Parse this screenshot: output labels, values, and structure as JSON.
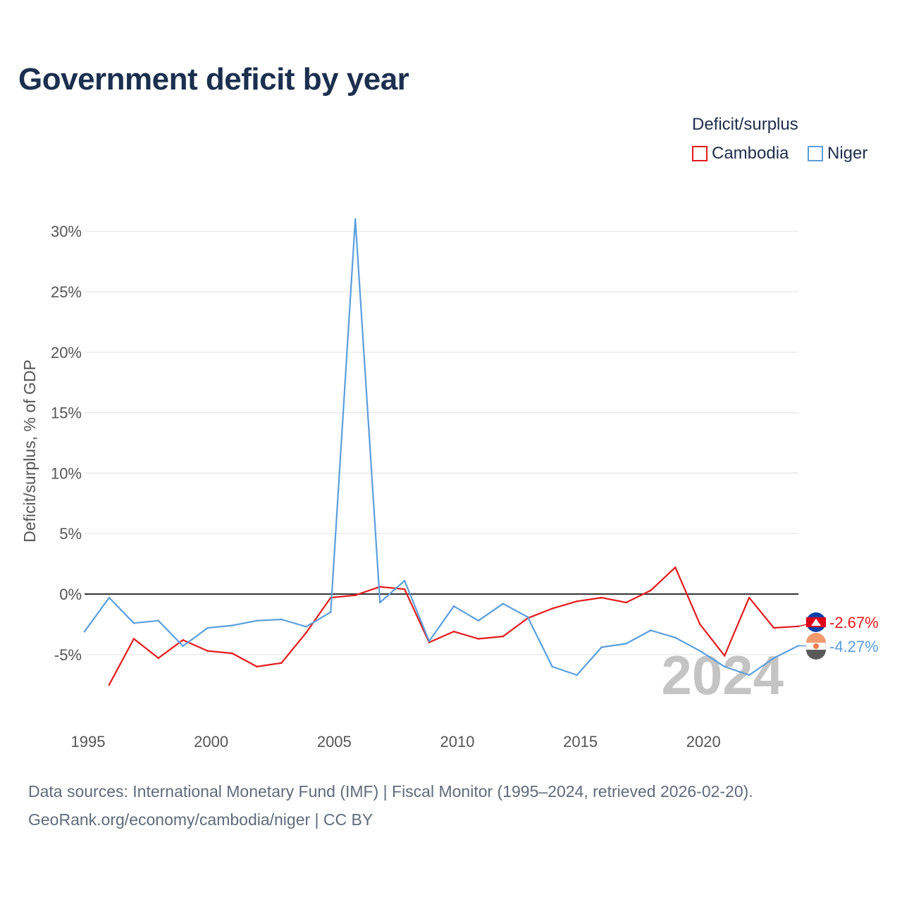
{
  "title": "Government deficit by year",
  "legend": {
    "title": "Deficit/surplus",
    "items": [
      "Cambodia",
      "Niger"
    ]
  },
  "colors": {
    "cambodia": "#e41a1c",
    "niger": "#5a9fdd",
    "grid": "#e6e6e6",
    "zero_line": "#333333",
    "year_watermark": "#c4c4c4",
    "axis_text": "#555555"
  },
  "source": {
    "line1": "Data sources: International Monetary Fund (IMF) | Fiscal Monitor (1995–2024, retrieved 2026-02-20).",
    "line2": "GeoRank.org/economy/cambodia/niger | CC BY"
  },
  "chart_data": {
    "type": "line",
    "title": "Government deficit by year",
    "xlabel": "",
    "ylabel": "Deficit/surplus, % of GDP",
    "xlim": [
      1995,
      2024
    ],
    "ylim": [
      -8.5,
      32
    ],
    "x_ticks": [
      1995,
      2000,
      2005,
      2010,
      2015,
      2020
    ],
    "y_ticks": [
      -5,
      0,
      5,
      10,
      15,
      20,
      25,
      30
    ],
    "y_tick_labels": [
      "-5%",
      "0%",
      "5%",
      "10%",
      "15%",
      "20%",
      "25%",
      "30%"
    ],
    "grid": true,
    "legend_position": "top-right",
    "watermark_year": "2024",
    "series": [
      {
        "name": "Cambodia",
        "x": [
          1996,
          1997,
          1998,
          1999,
          2000,
          2001,
          2002,
          2003,
          2004,
          2005,
          2006,
          2007,
          2008,
          2009,
          2010,
          2011,
          2012,
          2013,
          2014,
          2015,
          2016,
          2017,
          2018,
          2019,
          2020,
          2021,
          2022,
          2023,
          2024
        ],
        "values": [
          -7.5,
          -3.7,
          -5.3,
          -3.8,
          -4.7,
          -4.9,
          -6.0,
          -5.7,
          -3.2,
          -0.3,
          -0.1,
          0.6,
          0.4,
          -4.0,
          -3.1,
          -3.7,
          -3.5,
          -2.0,
          -1.2,
          -0.6,
          -0.3,
          -0.7,
          0.3,
          2.2,
          -2.5,
          -5.1,
          -0.3,
          -2.8,
          -2.67
        ],
        "end_label": "-2.67%"
      },
      {
        "name": "Niger",
        "x": [
          1995,
          1996,
          1997,
          1998,
          1999,
          2000,
          2001,
          2002,
          2003,
          2004,
          2005,
          2006,
          2007,
          2008,
          2009,
          2010,
          2011,
          2012,
          2013,
          2014,
          2015,
          2016,
          2017,
          2018,
          2019,
          2020,
          2021,
          2022,
          2023,
          2024
        ],
        "values": [
          -3.1,
          -0.3,
          -2.4,
          -2.2,
          -4.3,
          -2.8,
          -2.6,
          -2.2,
          -2.1,
          -2.7,
          -1.5,
          31.0,
          -0.7,
          1.1,
          -3.9,
          -1.0,
          -2.2,
          -0.8,
          -1.9,
          -6.0,
          -6.7,
          -4.4,
          -4.1,
          -3.0,
          -3.6,
          -4.7,
          -6.0,
          -6.7,
          -5.3,
          -4.27
        ],
        "end_label": "-4.27%"
      }
    ]
  }
}
